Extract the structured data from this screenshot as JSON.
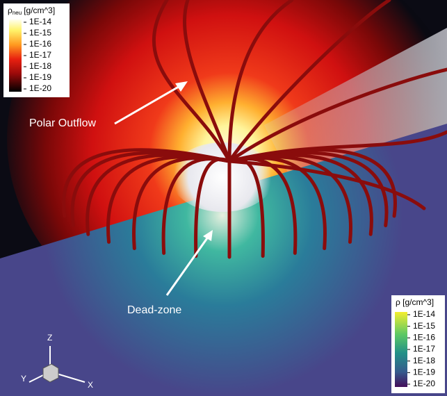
{
  "colorbar_neutral": {
    "title": {
      "symbol": "ρ",
      "subscript": "neu",
      "unit": "[g/cm^3]"
    },
    "ticks": [
      "1E-14",
      "1E-15",
      "1E-16",
      "1E-17",
      "1E-18",
      "1E-19",
      "1E-20"
    ]
  },
  "colorbar_plasma": {
    "title": "ρ [g/cm^3]",
    "ticks": [
      "1E-14",
      "1E-15",
      "1E-16",
      "1E-17",
      "1E-18",
      "1E-19",
      "1E-20"
    ]
  },
  "annotations": [
    "Polar Outflow",
    "Dead-zone"
  ],
  "axes": {
    "z": "Z",
    "y": "Y",
    "x": "X"
  }
}
